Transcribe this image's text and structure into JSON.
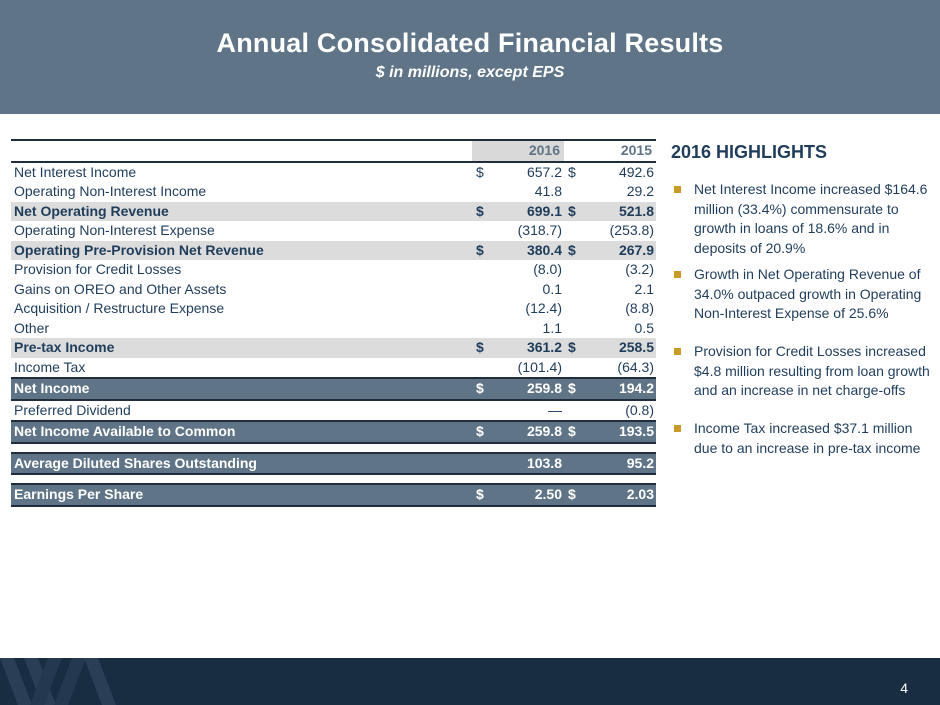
{
  "header": {
    "title": "Annual Consolidated Financial Results",
    "subtitle": "$ in millions, except EPS"
  },
  "table": {
    "columns": [
      "2016",
      "2015"
    ],
    "rows": [
      {
        "label": "Net Interest Income",
        "cur2016": "$",
        "v2016": "657.2",
        "cur2015": "$",
        "v2015": "492.6",
        "style": "plain"
      },
      {
        "label": "Operating Non-Interest Income",
        "cur2016": "",
        "v2016": "41.8",
        "cur2015": "",
        "v2015": "29.2",
        "style": "plain"
      },
      {
        "label": "Net Operating Revenue",
        "cur2016": "$",
        "v2016": "699.1",
        "cur2015": "$",
        "v2015": "521.8",
        "style": "highlight"
      },
      {
        "label": "Operating Non-Interest Expense",
        "cur2016": "",
        "v2016": "(318.7)",
        "cur2015": "",
        "v2015": "(253.8)",
        "style": "plain"
      },
      {
        "label": "Operating Pre-Provision Net Revenue",
        "cur2016": "$",
        "v2016": "380.4",
        "cur2015": "$",
        "v2015": "267.9",
        "style": "highlight"
      },
      {
        "label": "Provision for Credit Losses",
        "cur2016": "",
        "v2016": "(8.0)",
        "cur2015": "",
        "v2015": "(3.2)",
        "style": "plain"
      },
      {
        "label": "Gains on OREO and Other Assets",
        "cur2016": "",
        "v2016": "0.1",
        "cur2015": "",
        "v2015": "2.1",
        "style": "plain"
      },
      {
        "label": "Acquisition / Restructure Expense",
        "cur2016": "",
        "v2016": "(12.4)",
        "cur2015": "",
        "v2015": "(8.8)",
        "style": "plain"
      },
      {
        "label": "Other",
        "cur2016": "",
        "v2016": "1.1",
        "cur2015": "",
        "v2015": "0.5",
        "style": "plain"
      },
      {
        "label": "Pre-tax Income",
        "cur2016": "$",
        "v2016": "361.2",
        "cur2015": "$",
        "v2015": "258.5",
        "style": "highlight"
      },
      {
        "label": "Income Tax",
        "cur2016": "",
        "v2016": "(101.4)",
        "cur2015": "",
        "v2015": "(64.3)",
        "style": "plain"
      },
      {
        "label": "Net Income",
        "cur2016": "$",
        "v2016": "259.8",
        "cur2015": "$",
        "v2015": "194.2",
        "style": "dark"
      },
      {
        "label": "Preferred Dividend",
        "cur2016": "",
        "v2016": "—",
        "cur2015": "",
        "v2015": "(0.8)",
        "style": "plain"
      },
      {
        "label": "Net Income Available to Common",
        "cur2016": "$",
        "v2016": "259.8",
        "cur2015": "$",
        "v2015": "193.5",
        "style": "dark"
      },
      {
        "label": "Average Diluted Shares Outstanding",
        "cur2016": "",
        "v2016": "103.8",
        "cur2015": "",
        "v2015": "95.2",
        "style": "dark"
      },
      {
        "label": "Earnings Per Share",
        "cur2016": "$",
        "v2016": "2.50",
        "cur2015": "$",
        "v2015": "2.03",
        "style": "dark"
      }
    ]
  },
  "highlights": {
    "title": "2016 HIGHLIGHTS",
    "items": [
      "Net Interest Income increased $164.6 million (33.4%) commensurate to growth in loans of 18.6% and in deposits of 20.9%",
      "Growth in Net Operating Revenue of 34.0% outpaced growth in Operating Non-Interest Expense of 25.6%",
      "Provision for Credit Losses increased $4.8 million resulting from loan growth and an increase in net charge-offs",
      "Income Tax increased $37.1 million due to an increase in pre-tax income"
    ]
  },
  "footer": {
    "page_number": "4"
  },
  "colors": {
    "header_bg": "#5f7486",
    "footer_bg": "#182c42",
    "text": "#1f3d5b",
    "bullet": "#c89a28",
    "row_highlight": "#dcdcdc"
  }
}
